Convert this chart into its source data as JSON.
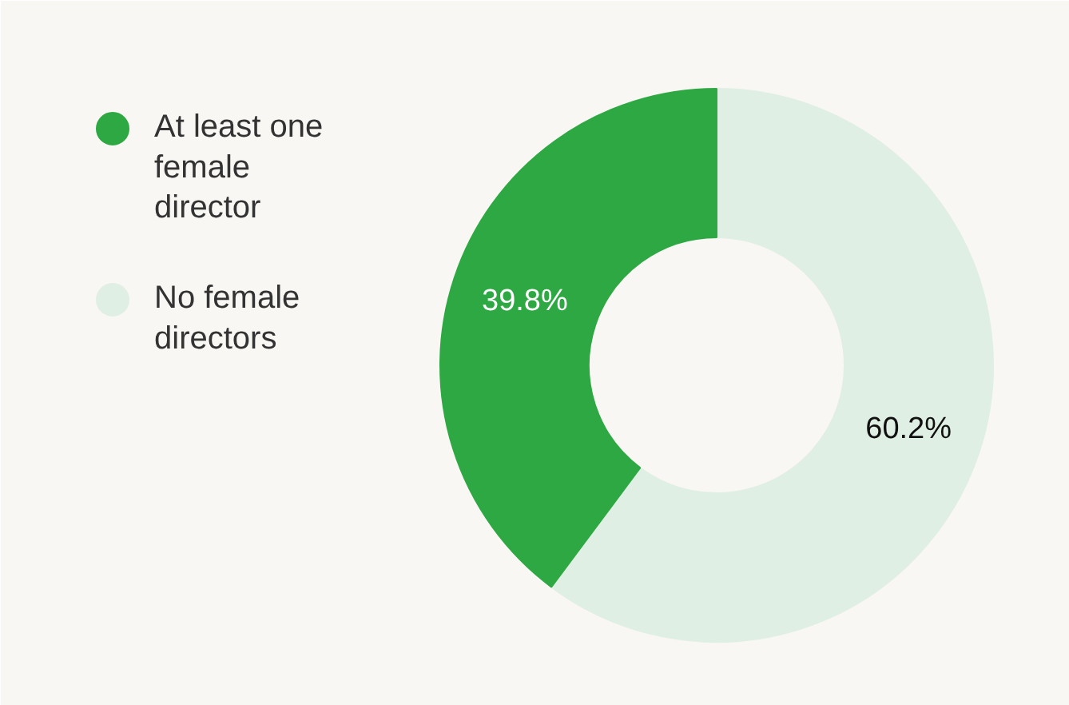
{
  "chart_data": {
    "type": "donut",
    "categories": [
      "At least one female director",
      "No female directors"
    ],
    "values": [
      39.8,
      60.2
    ],
    "colors": [
      "#2ea843",
      "#e0efe3"
    ],
    "value_labels": [
      "39.8%",
      "60.2%"
    ],
    "legend": "top left"
  }
}
